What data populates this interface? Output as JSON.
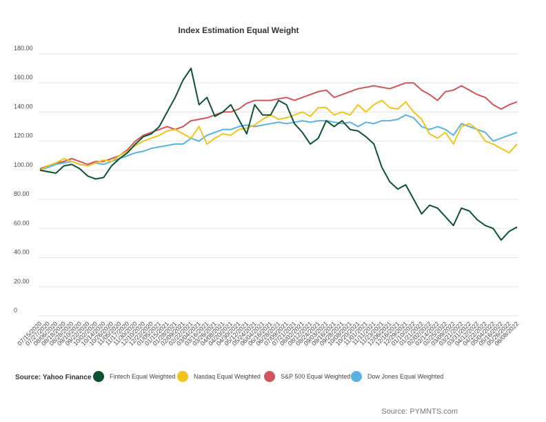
{
  "chart_data": {
    "type": "line",
    "title": "Index Estimation Equal Weight",
    "categories": [
      "07/15/2020",
      "07/27/2020",
      "08/06/2020",
      "08/18/2020",
      "08/28/2020",
      "09/10/2020",
      "09/22/2020",
      "10/02/2020",
      "10/14/2020",
      "10/26/2020",
      "11/05/2020",
      "11/17/2020",
      "11/30/2020",
      "12/10/2020",
      "12/22/2020",
      "01/05/2021",
      "01/15/2021",
      "01/28/2021",
      "02/09/2021",
      "02/22/2021",
      "03/04/2021",
      "03/16/2021",
      "03/26/2021",
      "04/08/2021",
      "04/20/2021",
      "04/30/2021",
      "05/12/2021",
      "05/24/2021",
      "06/04/2021",
      "06/16/2021",
      "06/28/2021",
      "07/09/2021",
      "07/21/2021",
      "08/02/2021",
      "08/12/2021",
      "08/24/2021",
      "09/03/2021",
      "09/16/2021",
      "09/28/2021",
      "10/08/2021",
      "10/20/2021",
      "11/01/2021",
      "11/11/2021",
      "11/23/2021",
      "12/06/2021",
      "12/16/2021",
      "12/29/2021",
      "01/10/2022",
      "01/21/2022",
      "02/02/2022",
      "02/14/2022",
      "02/25/2022",
      "03/09/2022",
      "03/21/2022",
      "03/31/2022",
      "04/12/2022",
      "04/22/2022",
      "05/04/2022",
      "05/16/2022",
      "05/26/2022",
      "06/08/2022"
    ],
    "series": [
      {
        "name": "Fintech Equal Weighted",
        "color": "#0b5130",
        "values": [
          100,
          99,
          98,
          103,
          104,
          101,
          96,
          94,
          95,
          103,
          108,
          112,
          118,
          123,
          125,
          130,
          140,
          150,
          162,
          170,
          145,
          150,
          137,
          140,
          145,
          135,
          125,
          145,
          138,
          138,
          148,
          145,
          132,
          126,
          118,
          122,
          134,
          130,
          134,
          128,
          127,
          123,
          118,
          102,
          92,
          87,
          90,
          80,
          70,
          76,
          74,
          68,
          62,
          74,
          72,
          66,
          62,
          60,
          52,
          58,
          61
        ]
      },
      {
        "name": "Nasdaq Equal Weighted",
        "color": "#f2c31c",
        "values": [
          100,
          103,
          105,
          108,
          106,
          104,
          103,
          105,
          107,
          106,
          110,
          113,
          117,
          120,
          122,
          124,
          127,
          128,
          125,
          122,
          130,
          118,
          122,
          125,
          124,
          128,
          129,
          131,
          135,
          138,
          135,
          136,
          138,
          140,
          137,
          143,
          143,
          138,
          140,
          138,
          145,
          140,
          145,
          148,
          143,
          142,
          147,
          140,
          135,
          125,
          122,
          126,
          118,
          130,
          132,
          128,
          120,
          118,
          115,
          112,
          118
        ]
      },
      {
        "name": "S&P 500 Equal Weighted",
        "color": "#d0545a",
        "values": [
          101,
          103,
          105,
          106,
          108,
          106,
          104,
          106,
          106,
          108,
          110,
          114,
          120,
          124,
          126,
          128,
          130,
          128,
          130,
          134,
          135,
          136,
          138,
          140,
          140,
          142,
          146,
          148,
          148,
          148,
          149,
          150,
          148,
          150,
          152,
          154,
          155,
          150,
          152,
          154,
          156,
          157,
          158,
          157,
          156,
          158,
          160,
          160,
          155,
          152,
          148,
          154,
          155,
          158,
          155,
          152,
          150,
          145,
          142,
          145,
          147
        ]
      },
      {
        "name": "Dow Jones Equal Weighted",
        "color": "#5ab0df",
        "values": [
          100,
          102,
          104,
          105,
          106,
          104,
          103,
          105,
          104,
          106,
          108,
          110,
          112,
          113,
          115,
          116,
          117,
          118,
          118,
          122,
          120,
          124,
          126,
          128,
          128,
          130,
          131,
          130,
          131,
          132,
          133,
          132,
          133,
          134,
          133,
          134,
          134,
          133,
          132,
          133,
          130,
          133,
          132,
          134,
          134,
          135,
          138,
          136,
          130,
          128,
          130,
          128,
          124,
          132,
          130,
          128,
          126,
          120,
          122,
          124,
          126
        ]
      }
    ],
    "ylim": [
      0,
      180
    ],
    "yticks": [
      0,
      {
        "value": 20,
        "label": "20.00"
      },
      {
        "value": 40,
        "label": "40.00"
      },
      {
        "value": 60,
        "label": "60.00"
      },
      {
        "value": 80,
        "label": "80.00"
      },
      {
        "value": 100,
        "label": "100.00"
      },
      {
        "value": 120,
        "label": "120.00"
      },
      {
        "value": 140,
        "label": "140.00"
      },
      {
        "value": 160,
        "label": "160.00"
      },
      {
        "value": 180,
        "label": "180.00"
      }
    ],
    "grid": true,
    "legend": "bottom",
    "source": "Source: Yahoo Finance",
    "credit": "Source: PYMNTS.com"
  }
}
